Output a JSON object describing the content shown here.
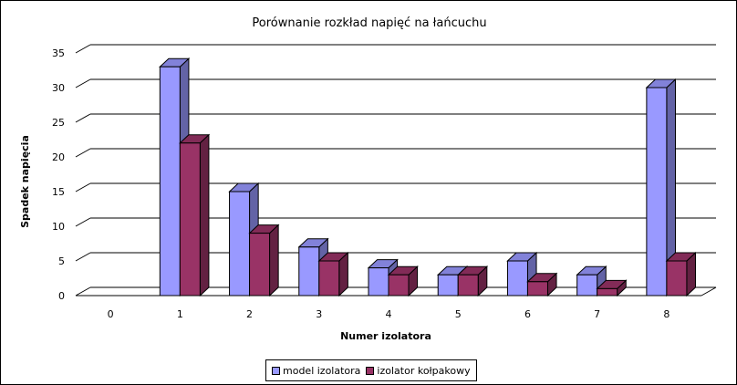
{
  "chart_data": {
    "type": "bar",
    "title": "Porównanie rozkład napięć na łańcuchu",
    "xlabel": "Numer izolatora",
    "ylabel": "Spadek napięcia",
    "categories": [
      "0",
      "1",
      "2",
      "3",
      "4",
      "5",
      "6",
      "7",
      "8"
    ],
    "ylim": [
      0,
      35
    ],
    "yticks": [
      "0",
      "5",
      "10",
      "15",
      "20",
      "25",
      "30",
      "35"
    ],
    "grid": true,
    "legend_position": "bottom",
    "series": [
      {
        "name": "model izolatora",
        "values": [
          0,
          33,
          15,
          7,
          4,
          3,
          5,
          3,
          30
        ],
        "color": "#9999ff"
      },
      {
        "name": "izolator kołpakowy",
        "values": [
          0,
          22,
          9,
          5,
          3,
          3,
          2,
          1,
          5
        ],
        "color": "#993366"
      }
    ]
  }
}
